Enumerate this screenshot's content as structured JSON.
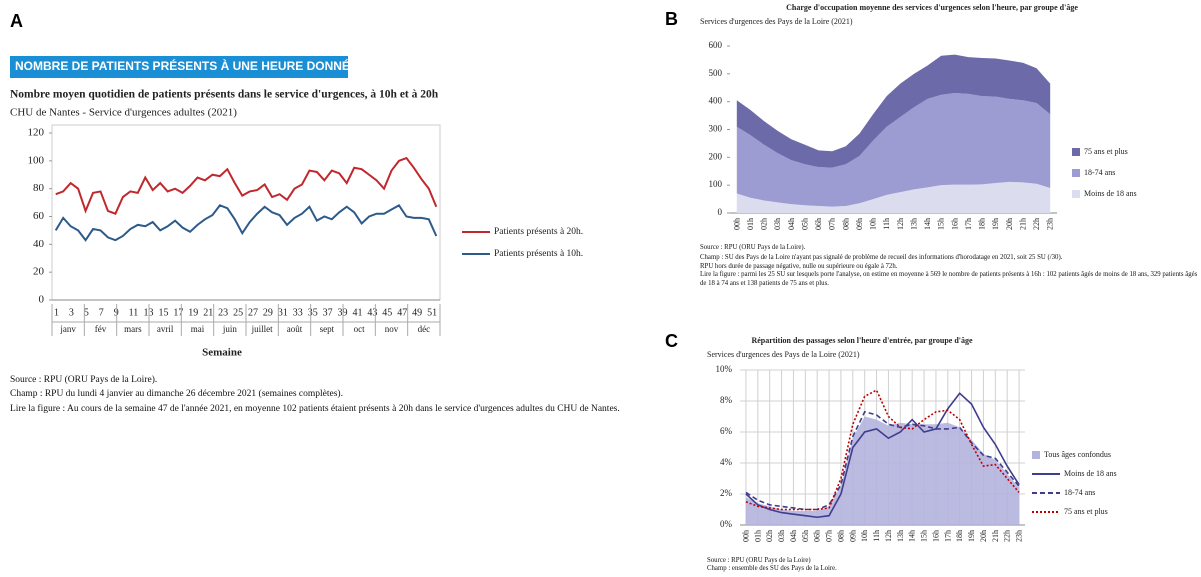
{
  "chart_data": [
    {
      "type": "line",
      "panel_label": "A",
      "banner": "NOMBRE DE PATIENTS PRÉSENTS À UNE HEURE DONNÉE",
      "title": "Nombre moyen quotidien de patients présents dans le service d'urgences, à 10h et à 20h",
      "subtitle": "CHU de Nantes - Service d'urgences adultes (2021)",
      "x_label": "Semaine",
      "categories": [
        "1",
        null,
        "3",
        null,
        "5",
        null,
        "7",
        null,
        "9",
        null,
        "11",
        null,
        "13",
        null,
        "15",
        null,
        "17",
        null,
        "19",
        null,
        "21",
        null,
        "23",
        null,
        "25",
        null,
        "27",
        null,
        "29",
        null,
        "31",
        null,
        "33",
        null,
        "35",
        null,
        "37",
        null,
        "39",
        null,
        "41",
        null,
        "43",
        null,
        "45",
        null,
        "47",
        null,
        "49",
        null,
        "51",
        null
      ],
      "month_labels": [
        "janv",
        "fév",
        "mars",
        "avril",
        "mai",
        "juin",
        "juillet",
        "août",
        "sept",
        "oct",
        "nov",
        "déc"
      ],
      "series": [
        {
          "name": "Patients présents à 20h.",
          "color": "#c0282d",
          "values": [
            76,
            78,
            84,
            80,
            64,
            77,
            78,
            64,
            62,
            74,
            78,
            77,
            88,
            79,
            84,
            78,
            80,
            77,
            82,
            88,
            86,
            90,
            89,
            94,
            84,
            75,
            78,
            79,
            83,
            74,
            76,
            72,
            80,
            83,
            93,
            92,
            86,
            93,
            91,
            84,
            95,
            94,
            90,
            86,
            80,
            93,
            100,
            102,
            95,
            87,
            80,
            67
          ]
        },
        {
          "name": "Patients présents à 10h.",
          "color": "#2e5a8a",
          "values": [
            50,
            59,
            53,
            50,
            43,
            51,
            50,
            45,
            43,
            46,
            51,
            54,
            53,
            56,
            50,
            53,
            57,
            52,
            49,
            54,
            58,
            61,
            68,
            66,
            58,
            48,
            56,
            62,
            67,
            63,
            61,
            54,
            59,
            62,
            67,
            57,
            60,
            58,
            63,
            67,
            63,
            55,
            60,
            62,
            62,
            65,
            68,
            60,
            59,
            59,
            58,
            46
          ]
        }
      ],
      "ylim": [
        0,
        120
      ],
      "yticks": [
        0,
        20,
        40,
        60,
        80,
        100,
        120
      ],
      "grid": false,
      "notes": [
        "Source : RPU (ORU Pays de la Loire).",
        "Champ : RPU du lundi 4 janvier au dimanche 26 décembre 2021 (semaines complètes).",
        "Lire la figure : Au cours de la semaine 47 de l'année 2021, en moyenne 102 patients étaient présents à 20h dans le service d'urgences adultes du CHU de Nantes."
      ]
    },
    {
      "type": "area",
      "stacked": true,
      "panel_label": "B",
      "title": "Charge d'occupation moyenne des services d'urgences selon l'heure, par groupe d'âge",
      "subtitle": "Services d'urgences des Pays de la Loire (2021)",
      "categories": [
        "00h",
        "01h",
        "02h",
        "03h",
        "04h",
        "05h",
        "06h",
        "07h",
        "08h",
        "09h",
        "10h",
        "11h",
        "12h",
        "13h",
        "14h",
        "15h",
        "16h",
        "17h",
        "18h",
        "19h",
        "20h",
        "21h",
        "22h",
        "23h"
      ],
      "series": [
        {
          "name": "Moins de 18 ans",
          "color": "#dcdcef",
          "values": [
            70,
            55,
            45,
            38,
            32,
            28,
            25,
            23,
            25,
            35,
            50,
            65,
            75,
            85,
            92,
            100,
            102,
            102,
            103,
            108,
            112,
            110,
            105,
            90
          ]
        },
        {
          "name": "18-74 ans",
          "color": "#9c9bd2",
          "values": [
            240,
            225,
            200,
            177,
            158,
            147,
            140,
            140,
            150,
            170,
            210,
            245,
            270,
            295,
            318,
            325,
            329,
            326,
            317,
            310,
            298,
            295,
            290,
            265
          ]
        },
        {
          "name": "75 ans et plus",
          "color": "#6c6aa9",
          "values": [
            95,
            90,
            85,
            80,
            75,
            70,
            60,
            59,
            65,
            80,
            95,
            110,
            120,
            120,
            120,
            140,
            138,
            132,
            137,
            137,
            138,
            135,
            125,
            110
          ]
        }
      ],
      "ylim": [
        0,
        600
      ],
      "yticks": [
        0,
        100,
        200,
        300,
        400,
        500,
        600
      ],
      "grid": false,
      "notes": [
        "Source : RPU (ORU Pays de la Loire).",
        "Champ : SU des Pays de la Loire n'ayant pas signalé de problème de recueil des informations d'horodatage en 2021, soit 25 SU (/30).",
        "RPU hors durée de passage négative, nulle ou supérieure ou égale à 72h.",
        "Lire la figure : parmi les 25 SU sur lesquels porte l'analyse, on estime en moyenne à 569 le nombre de patients présents à 16h : 102 patients âgés de moins de 18 ans, 329 patients âgés de 18 à 74 ans et 138 patients de 75 ans et plus."
      ]
    },
    {
      "type": "line",
      "panel_label": "C",
      "title": "Répartition des passages selon l'heure d'entrée, par groupe d'âge",
      "subtitle": "Services d'urgences des Pays de la Loire (2021)",
      "categories": [
        "00h",
        "01h",
        "02h",
        "03h",
        "04h",
        "05h",
        "06h",
        "07h",
        "08h",
        "09h",
        "10h",
        "11h",
        "12h",
        "13h",
        "14h",
        "15h",
        "16h",
        "17h",
        "18h",
        "19h",
        "20h",
        "21h",
        "22h",
        "23h"
      ],
      "series": [
        {
          "name": "Tous âges confondus",
          "color": "#b4b3de",
          "style": "area",
          "values": [
            1.8,
            1.4,
            1.2,
            1.0,
            0.9,
            0.9,
            0.9,
            1.2,
            2.5,
            5.6,
            7.0,
            6.8,
            6.4,
            6.6,
            6.5,
            6.5,
            6.5,
            6.6,
            6.3,
            5.5,
            4.6,
            4.2,
            3.3,
            2.4
          ]
        },
        {
          "name": "Moins de 18 ans",
          "color": "#3e3d8e",
          "style": "solid",
          "values": [
            2.0,
            1.3,
            1.0,
            0.8,
            0.7,
            0.6,
            0.5,
            0.6,
            2.0,
            5.0,
            6.0,
            6.2,
            5.6,
            6.0,
            6.8,
            6.0,
            6.2,
            7.5,
            8.5,
            7.8,
            6.3,
            5.2,
            3.8,
            2.6
          ]
        },
        {
          "name": "18-74 ans",
          "color": "#3e3d8e",
          "style": "dashed",
          "values": [
            2.1,
            1.6,
            1.3,
            1.2,
            1.1,
            1.0,
            1.0,
            1.3,
            2.6,
            5.7,
            7.3,
            7.1,
            6.5,
            6.3,
            6.5,
            6.4,
            6.2,
            6.2,
            6.3,
            5.3,
            4.5,
            4.3,
            3.4,
            2.5
          ]
        },
        {
          "name": "75 ans et plus",
          "color": "#c00000",
          "style": "dotted",
          "values": [
            1.5,
            1.2,
            1.1,
            1.0,
            1.0,
            1.0,
            1.0,
            1.1,
            3.0,
            6.5,
            8.3,
            8.7,
            7.0,
            6.3,
            6.2,
            6.8,
            7.3,
            7.4,
            6.8,
            5.2,
            3.8,
            3.9,
            3.0,
            2.1
          ]
        }
      ],
      "ylim": [
        0,
        10
      ],
      "yticks": [
        {
          "value": 0,
          "label": "0%"
        },
        {
          "value": 2,
          "label": "2%"
        },
        {
          "value": 4,
          "label": "4%"
        },
        {
          "value": 6,
          "label": "6%"
        },
        {
          "value": 8,
          "label": "8%"
        },
        {
          "value": 10,
          "label": "10%"
        }
      ],
      "grid": true,
      "notes": [
        "Source : RPU (ORU Pays de la Loire)",
        "Champ : ensemble des SU des Pays de la Loire."
      ]
    }
  ]
}
